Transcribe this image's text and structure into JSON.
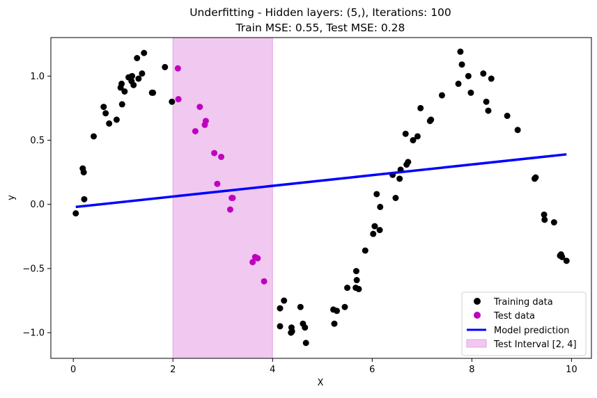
{
  "chart_data": {
    "type": "scatter",
    "title_line1": "Underfitting - Hidden layers: (5,), Iterations: 100",
    "title_line2": "Train MSE: 0.55, Test MSE: 0.28",
    "xlabel": "X",
    "ylabel": "y",
    "xlim": [
      -0.45,
      10.4
    ],
    "ylim": [
      -1.2,
      1.3
    ],
    "xticks": [
      0,
      2,
      4,
      6,
      8,
      10
    ],
    "xtick_labels": [
      "0",
      "2",
      "4",
      "6",
      "8",
      "10"
    ],
    "yticks": [
      -1.0,
      -0.5,
      0.0,
      0.5,
      1.0
    ],
    "ytick_labels": [
      "−1.0",
      "−0.5",
      "0.0",
      "0.5",
      "1.0"
    ],
    "grid": false,
    "legend_position": "bottom-right",
    "colors": {
      "training": "#000000",
      "test": "#bf00bf",
      "prediction": "#0000ff",
      "interval_fill": "#f0c8f0",
      "interval_edge": "#e6a5e6"
    },
    "test_interval": [
      2,
      4
    ],
    "series": [
      {
        "name": "Training data",
        "kind": "scatter",
        "points": [
          [
            0.05,
            -0.07
          ],
          [
            0.19,
            0.28
          ],
          [
            0.21,
            0.25
          ],
          [
            0.22,
            0.04
          ],
          [
            0.41,
            0.53
          ],
          [
            0.61,
            0.76
          ],
          [
            0.65,
            0.71
          ],
          [
            0.72,
            0.63
          ],
          [
            0.87,
            0.66
          ],
          [
            0.95,
            0.91
          ],
          [
            0.97,
            0.94
          ],
          [
            0.98,
            0.78
          ],
          [
            1.03,
            0.88
          ],
          [
            1.11,
            0.99
          ],
          [
            1.17,
            0.96
          ],
          [
            1.18,
            1.0
          ],
          [
            1.21,
            0.93
          ],
          [
            1.28,
            1.14
          ],
          [
            1.31,
            0.98
          ],
          [
            1.38,
            1.02
          ],
          [
            1.42,
            1.18
          ],
          [
            1.58,
            0.87
          ],
          [
            1.6,
            0.87
          ],
          [
            1.84,
            1.07
          ],
          [
            1.98,
            0.8
          ],
          [
            4.15,
            -0.81
          ],
          [
            4.15,
            -0.95
          ],
          [
            4.23,
            -0.75
          ],
          [
            4.37,
            -1.0
          ],
          [
            4.38,
            -0.96
          ],
          [
            4.39,
            -0.99
          ],
          [
            4.56,
            -0.8
          ],
          [
            4.61,
            -0.93
          ],
          [
            4.65,
            -0.96
          ],
          [
            4.67,
            -1.08
          ],
          [
            5.22,
            -0.82
          ],
          [
            5.24,
            -0.93
          ],
          [
            5.29,
            -0.83
          ],
          [
            5.45,
            -0.8
          ],
          [
            5.5,
            -0.65
          ],
          [
            5.67,
            -0.65
          ],
          [
            5.68,
            -0.52
          ],
          [
            5.69,
            -0.59
          ],
          [
            5.73,
            -0.66
          ],
          [
            5.86,
            -0.36
          ],
          [
            6.02,
            -0.23
          ],
          [
            6.05,
            -0.17
          ],
          [
            6.09,
            0.08
          ],
          [
            6.15,
            -0.2
          ],
          [
            6.16,
            -0.02
          ],
          [
            6.41,
            0.23
          ],
          [
            6.47,
            0.05
          ],
          [
            6.55,
            0.2
          ],
          [
            6.57,
            0.27
          ],
          [
            6.67,
            0.55
          ],
          [
            6.69,
            0.31
          ],
          [
            6.72,
            0.33
          ],
          [
            6.82,
            0.5
          ],
          [
            6.91,
            0.53
          ],
          [
            6.97,
            0.75
          ],
          [
            7.16,
            0.65
          ],
          [
            7.18,
            0.66
          ],
          [
            7.4,
            0.85
          ],
          [
            7.73,
            0.94
          ],
          [
            7.77,
            1.19
          ],
          [
            7.8,
            1.09
          ],
          [
            7.93,
            1.0
          ],
          [
            7.98,
            0.87
          ],
          [
            8.23,
            1.02
          ],
          [
            8.29,
            0.8
          ],
          [
            8.33,
            0.73
          ],
          [
            8.39,
            0.98
          ],
          [
            8.71,
            0.69
          ],
          [
            8.92,
            0.58
          ],
          [
            9.26,
            0.2
          ],
          [
            9.28,
            0.21
          ],
          [
            9.45,
            -0.08
          ],
          [
            9.46,
            -0.12
          ],
          [
            9.65,
            -0.14
          ],
          [
            9.77,
            -0.4
          ],
          [
            9.79,
            -0.39
          ],
          [
            9.81,
            -0.41
          ],
          [
            9.9,
            -0.44
          ]
        ]
      },
      {
        "name": "Test data",
        "kind": "scatter",
        "points": [
          [
            2.1,
            1.06
          ],
          [
            2.11,
            0.82
          ],
          [
            2.45,
            0.57
          ],
          [
            2.54,
            0.76
          ],
          [
            2.64,
            0.62
          ],
          [
            2.66,
            0.65
          ],
          [
            2.83,
            0.4
          ],
          [
            2.89,
            0.16
          ],
          [
            2.97,
            0.37
          ],
          [
            3.15,
            -0.04
          ],
          [
            3.18,
            0.05
          ],
          [
            3.2,
            0.05
          ],
          [
            3.6,
            -0.45
          ],
          [
            3.65,
            -0.41
          ],
          [
            3.7,
            -0.42
          ],
          [
            3.83,
            -0.6
          ]
        ]
      },
      {
        "name": "Model prediction",
        "kind": "line",
        "points": [
          [
            0.05,
            -0.02
          ],
          [
            9.9,
            0.39
          ]
        ]
      },
      {
        "name": "Test Interval [2, 4]",
        "kind": "span"
      }
    ]
  }
}
